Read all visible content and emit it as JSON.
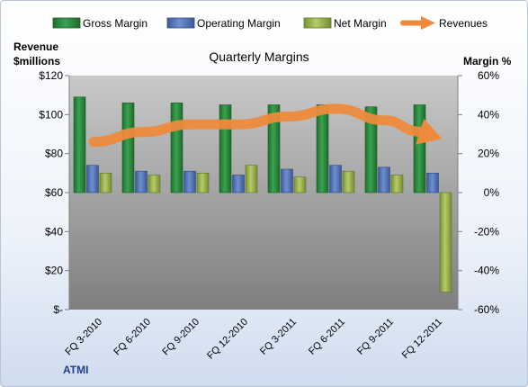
{
  "chart_data": {
    "type": "bar",
    "title": "Quarterly Margins",
    "categories": [
      "FQ 3-2010",
      "FQ 6-2010",
      "FQ 9-2010",
      "FQ 12-2010",
      "FQ 3-2011",
      "FQ 6-2011",
      "FQ 9-2011",
      "FQ 12-2011"
    ],
    "series": [
      {
        "name": "Gross Margin",
        "type": "bar",
        "axis": "right",
        "color": "#2e8b3e",
        "values": [
          49,
          46,
          46,
          45,
          45,
          45,
          44,
          45
        ]
      },
      {
        "name": "Operating Margin",
        "type": "bar",
        "axis": "right",
        "color": "#4f72b8",
        "values": [
          14,
          11,
          11,
          9,
          12,
          14,
          13,
          10
        ]
      },
      {
        "name": "Net Margin",
        "type": "bar",
        "axis": "right",
        "color": "#97b04a",
        "values": [
          10,
          9,
          10,
          14,
          8,
          11,
          9,
          -51
        ]
      },
      {
        "name": "Revenues",
        "type": "line",
        "axis": "left",
        "color": "#ed8a3c",
        "values": [
          86,
          91,
          95,
          95,
          99,
          103,
          97,
          89
        ]
      }
    ],
    "y_left": {
      "label_line1": "Revenue",
      "label_line2": "$millions",
      "ylim": [
        0,
        120
      ],
      "ticks": [
        0,
        20,
        40,
        60,
        80,
        100,
        120
      ],
      "tick_labels": [
        "$-",
        "$20",
        "$40",
        "$60",
        "$80",
        "$100",
        "$120"
      ]
    },
    "y_right": {
      "label": "Margin %",
      "ylim": [
        -60,
        60
      ],
      "ticks": [
        -60,
        -40,
        -20,
        0,
        20,
        40,
        60
      ],
      "tick_labels": [
        "-60%",
        "-40%",
        "-20%",
        "0%",
        "20%",
        "40%",
        "60%"
      ]
    },
    "legend_position": "top",
    "grid": false,
    "footer_label": "ATMI"
  }
}
